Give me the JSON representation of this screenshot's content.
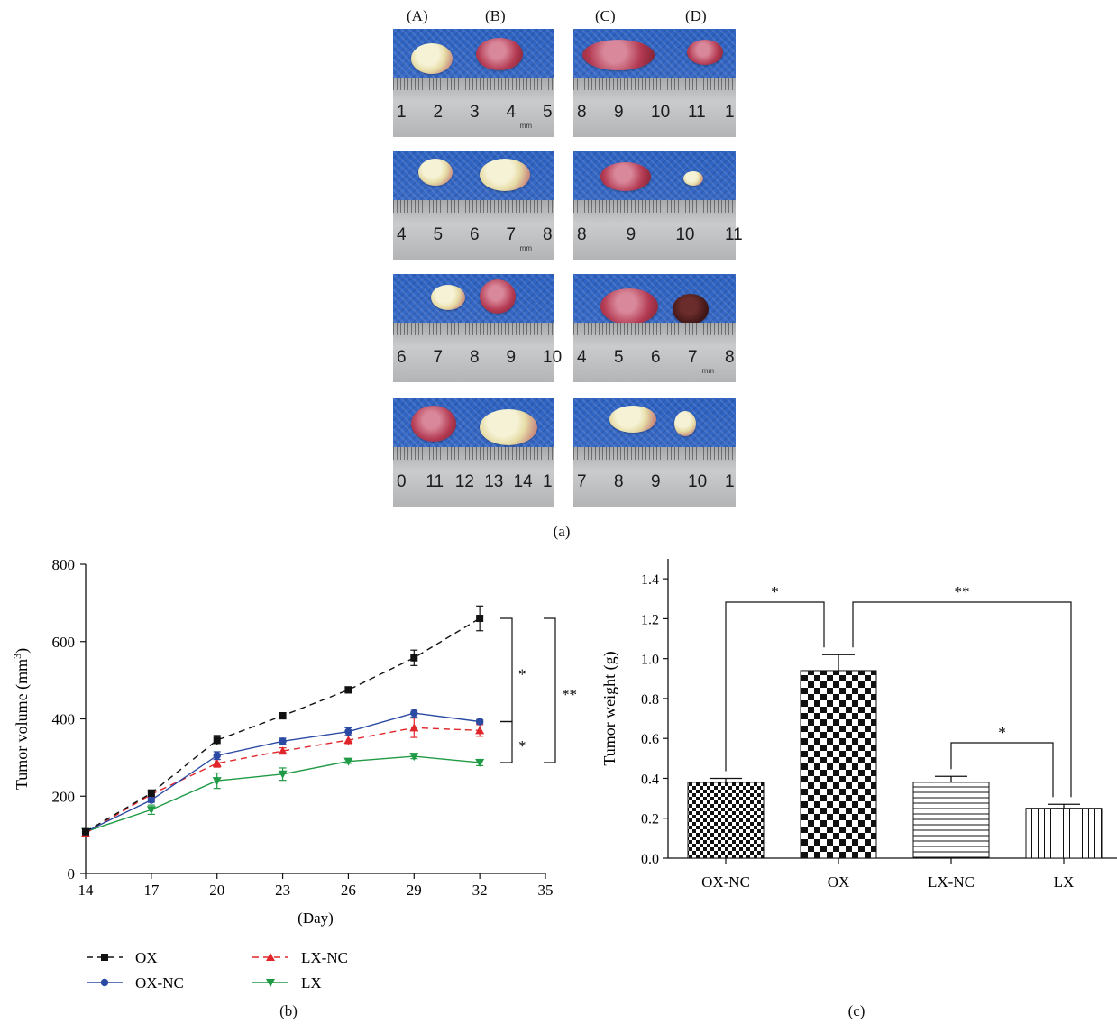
{
  "figure": {
    "panel_a": {
      "label": "(a)",
      "columns": [
        "(A)",
        "(B)",
        "(C)",
        "(D)"
      ],
      "photos": [
        {
          "ruler_numbers": [
            "1",
            "2",
            "3",
            "4",
            "5"
          ],
          "unit": "mm"
        },
        {
          "ruler_numbers": [
            "8",
            "9",
            "10",
            "11",
            "1"
          ],
          "unit": ""
        },
        {
          "ruler_numbers": [
            "4",
            "5",
            "6",
            "7",
            "8"
          ],
          "unit": "mm"
        },
        {
          "ruler_numbers": [
            "8",
            "9",
            "10",
            "11"
          ],
          "unit": ""
        },
        {
          "ruler_numbers": [
            "6",
            "7",
            "8",
            "9",
            "10"
          ],
          "unit": ""
        },
        {
          "ruler_numbers": [
            "4",
            "5",
            "6",
            "7",
            "8"
          ],
          "unit": "mm"
        },
        {
          "ruler_numbers": [
            "0",
            "11",
            "12",
            "13",
            "14",
            "1"
          ],
          "unit": ""
        },
        {
          "ruler_numbers": [
            "7",
            "8",
            "9",
            "10",
            "1"
          ],
          "unit": ""
        }
      ]
    },
    "panel_b_label": "(b)",
    "panel_c_label": "(c)"
  },
  "chart_data": [
    {
      "type": "line",
      "panel": "(b)",
      "xlabel": "(Day)",
      "ylabel": "Tumor volume (mm3)",
      "ylabel_main": "Tumor volume (mm",
      "ylabel_sup": "3",
      "ylabel_close": ")",
      "x_ticks": [
        14,
        17,
        20,
        23,
        26,
        29,
        32,
        35
      ],
      "y_ticks": [
        0,
        200,
        400,
        600,
        800
      ],
      "xlim": [
        14,
        35
      ],
      "ylim": [
        0,
        800
      ],
      "x": [
        14,
        17,
        20,
        23,
        26,
        29,
        32
      ],
      "series": [
        {
          "name": "OX",
          "values": [
            108,
            208,
            345,
            408,
            475,
            558,
            660
          ],
          "errors": [
            5,
            8,
            12,
            8,
            8,
            20,
            32
          ],
          "color": "#111111",
          "dash": "7,5",
          "marker": "square"
        },
        {
          "name": "OX-NC",
          "values": [
            108,
            190,
            305,
            342,
            367,
            415,
            393
          ],
          "errors": [
            5,
            6,
            10,
            8,
            10,
            10,
            5
          ],
          "color": "#2b4aa3",
          "dash": "",
          "marker": "circle"
        },
        {
          "name": "LX-NC",
          "values": [
            104,
            205,
            285,
            317,
            345,
            377,
            370
          ],
          "errors": [
            5,
            8,
            10,
            8,
            12,
            25,
            15
          ],
          "color": "#e0262b",
          "dash": "7,5",
          "marker": "triangle-up"
        },
        {
          "name": "LX",
          "values": [
            108,
            165,
            240,
            257,
            290,
            303,
            287
          ],
          "errors": [
            5,
            12,
            20,
            16,
            5,
            6,
            8
          ],
          "color": "#1f9a45",
          "dash": "",
          "marker": "triangle-down"
        }
      ],
      "annotations": [
        {
          "text": "*",
          "from": 660,
          "to": 393
        },
        {
          "text": "*",
          "from": 393,
          "to": 287
        },
        {
          "text": "**",
          "from": 660,
          "to": 287
        }
      ],
      "legend": "bottom"
    },
    {
      "type": "bar",
      "panel": "(c)",
      "xlabel": "",
      "ylabel": "Tumor weight (g)",
      "categories": [
        "OX-NC",
        "OX",
        "LX-NC",
        "LX"
      ],
      "values": [
        0.38,
        0.94,
        0.38,
        0.25
      ],
      "errors": [
        0.02,
        0.08,
        0.03,
        0.02
      ],
      "patterns": [
        "checker-small",
        "checker-large",
        "horizontal-lines",
        "vertical-lines"
      ],
      "ylim": [
        0,
        1.5
      ],
      "y_ticks": [
        "0.0",
        "0.2",
        "0.4",
        "0.6",
        "0.8",
        "1.0",
        "1.2",
        "1.4"
      ],
      "annotations": [
        {
          "text": "*",
          "between": [
            "OX-NC",
            "OX"
          ]
        },
        {
          "text": "**",
          "between": [
            "OX",
            "LX"
          ]
        },
        {
          "text": "*",
          "between": [
            "LX-NC",
            "LX"
          ]
        }
      ]
    }
  ]
}
